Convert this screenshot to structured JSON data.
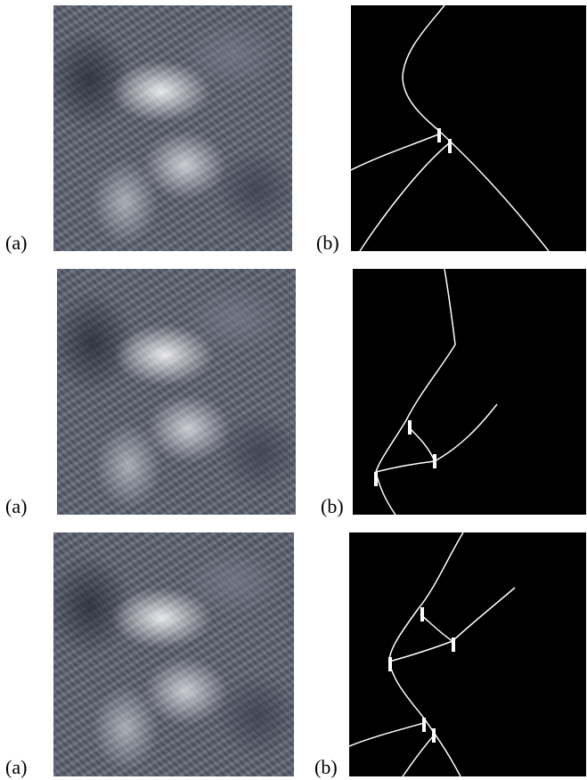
{
  "rows": [
    {
      "label_a": "(a)",
      "label_b": "(b)"
    },
    {
      "label_a": "(a)",
      "label_b": "(b)"
    },
    {
      "label_a": "(a)",
      "label_b": "(b)"
    }
  ],
  "colors": {
    "map_background": "#000000",
    "road_line": "#ffffff",
    "marker": "#ffffff"
  }
}
